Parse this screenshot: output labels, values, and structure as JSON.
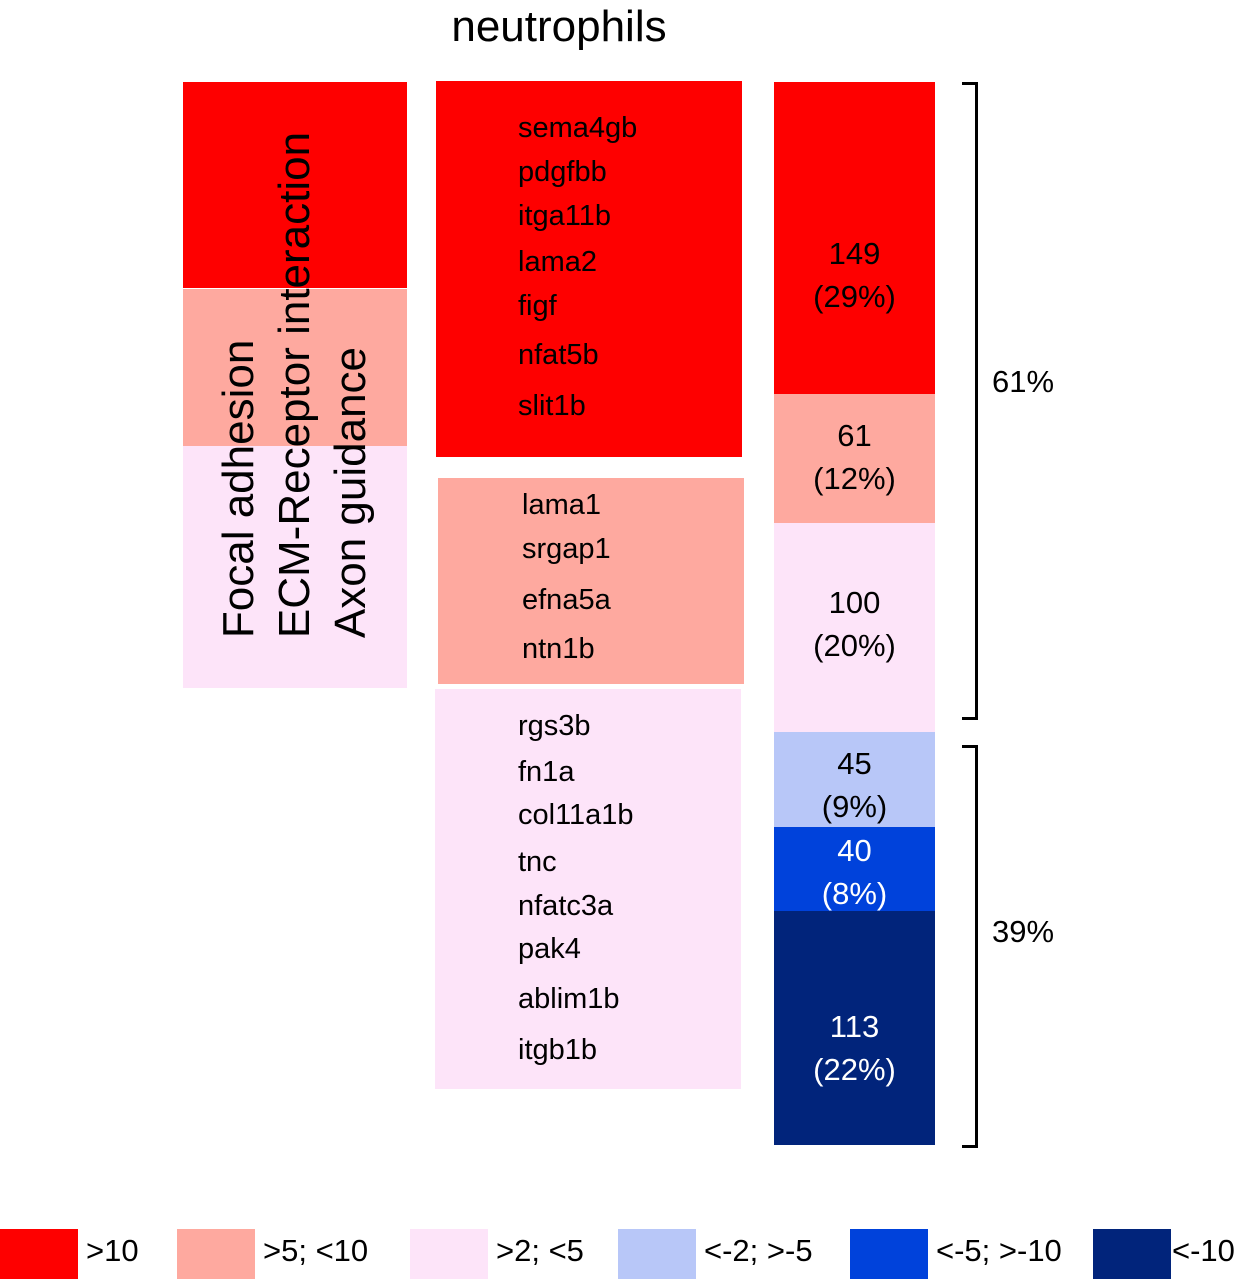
{
  "chart_data": {
    "type": "table",
    "title": "neutrophils",
    "colors": {
      "gt10": "#fe0000",
      "5to10": "#fea99f",
      "2to5": "#fde4f9",
      "neg2to5": "#b8c7f8",
      "neg5to10": "#0042db",
      "lt_neg10": "#01247b"
    },
    "pathways": [
      "Focal adhesion",
      "ECM-Receptor interaction",
      "Axon guidance"
    ],
    "gene_groups": [
      {
        "category": ">10",
        "genes": [
          "sema4gb",
          "pdgfbb",
          "itga11b",
          "lama2",
          "figf",
          "nfat5b",
          "slit1b"
        ]
      },
      {
        "category": ">5; <10",
        "genes": [
          "lama1",
          "srgap1",
          "efna5a",
          "ntn1b"
        ]
      },
      {
        "category": ">2; <5",
        "genes": [
          "rgs3b",
          "fn1a",
          "col11a1b",
          "tnc",
          "nfatc3a",
          "pak4",
          "ablim1b",
          "itgb1b"
        ]
      }
    ],
    "segments": [
      {
        "category": ">10",
        "count": "149",
        "percent": "(29%)"
      },
      {
        "category": ">5; <10",
        "count": "61",
        "percent": "(12%)"
      },
      {
        "category": ">2; <5",
        "count": "100",
        "percent": "(20%)"
      },
      {
        "category": "<-2; >-5",
        "count": "45",
        "percent": "(9%)"
      },
      {
        "category": "<-5; >-10",
        "count": "40",
        "percent": "(8%)"
      },
      {
        "category": "<-10",
        "count": "113",
        "percent": "(22%)"
      }
    ],
    "groups": [
      {
        "label": "61%"
      },
      {
        "label": "39%"
      }
    ],
    "legend": [
      ">10",
      ">5; <10",
      ">2; <5",
      "<-2; >-5",
      "<-5; >-10",
      "<-10"
    ]
  }
}
